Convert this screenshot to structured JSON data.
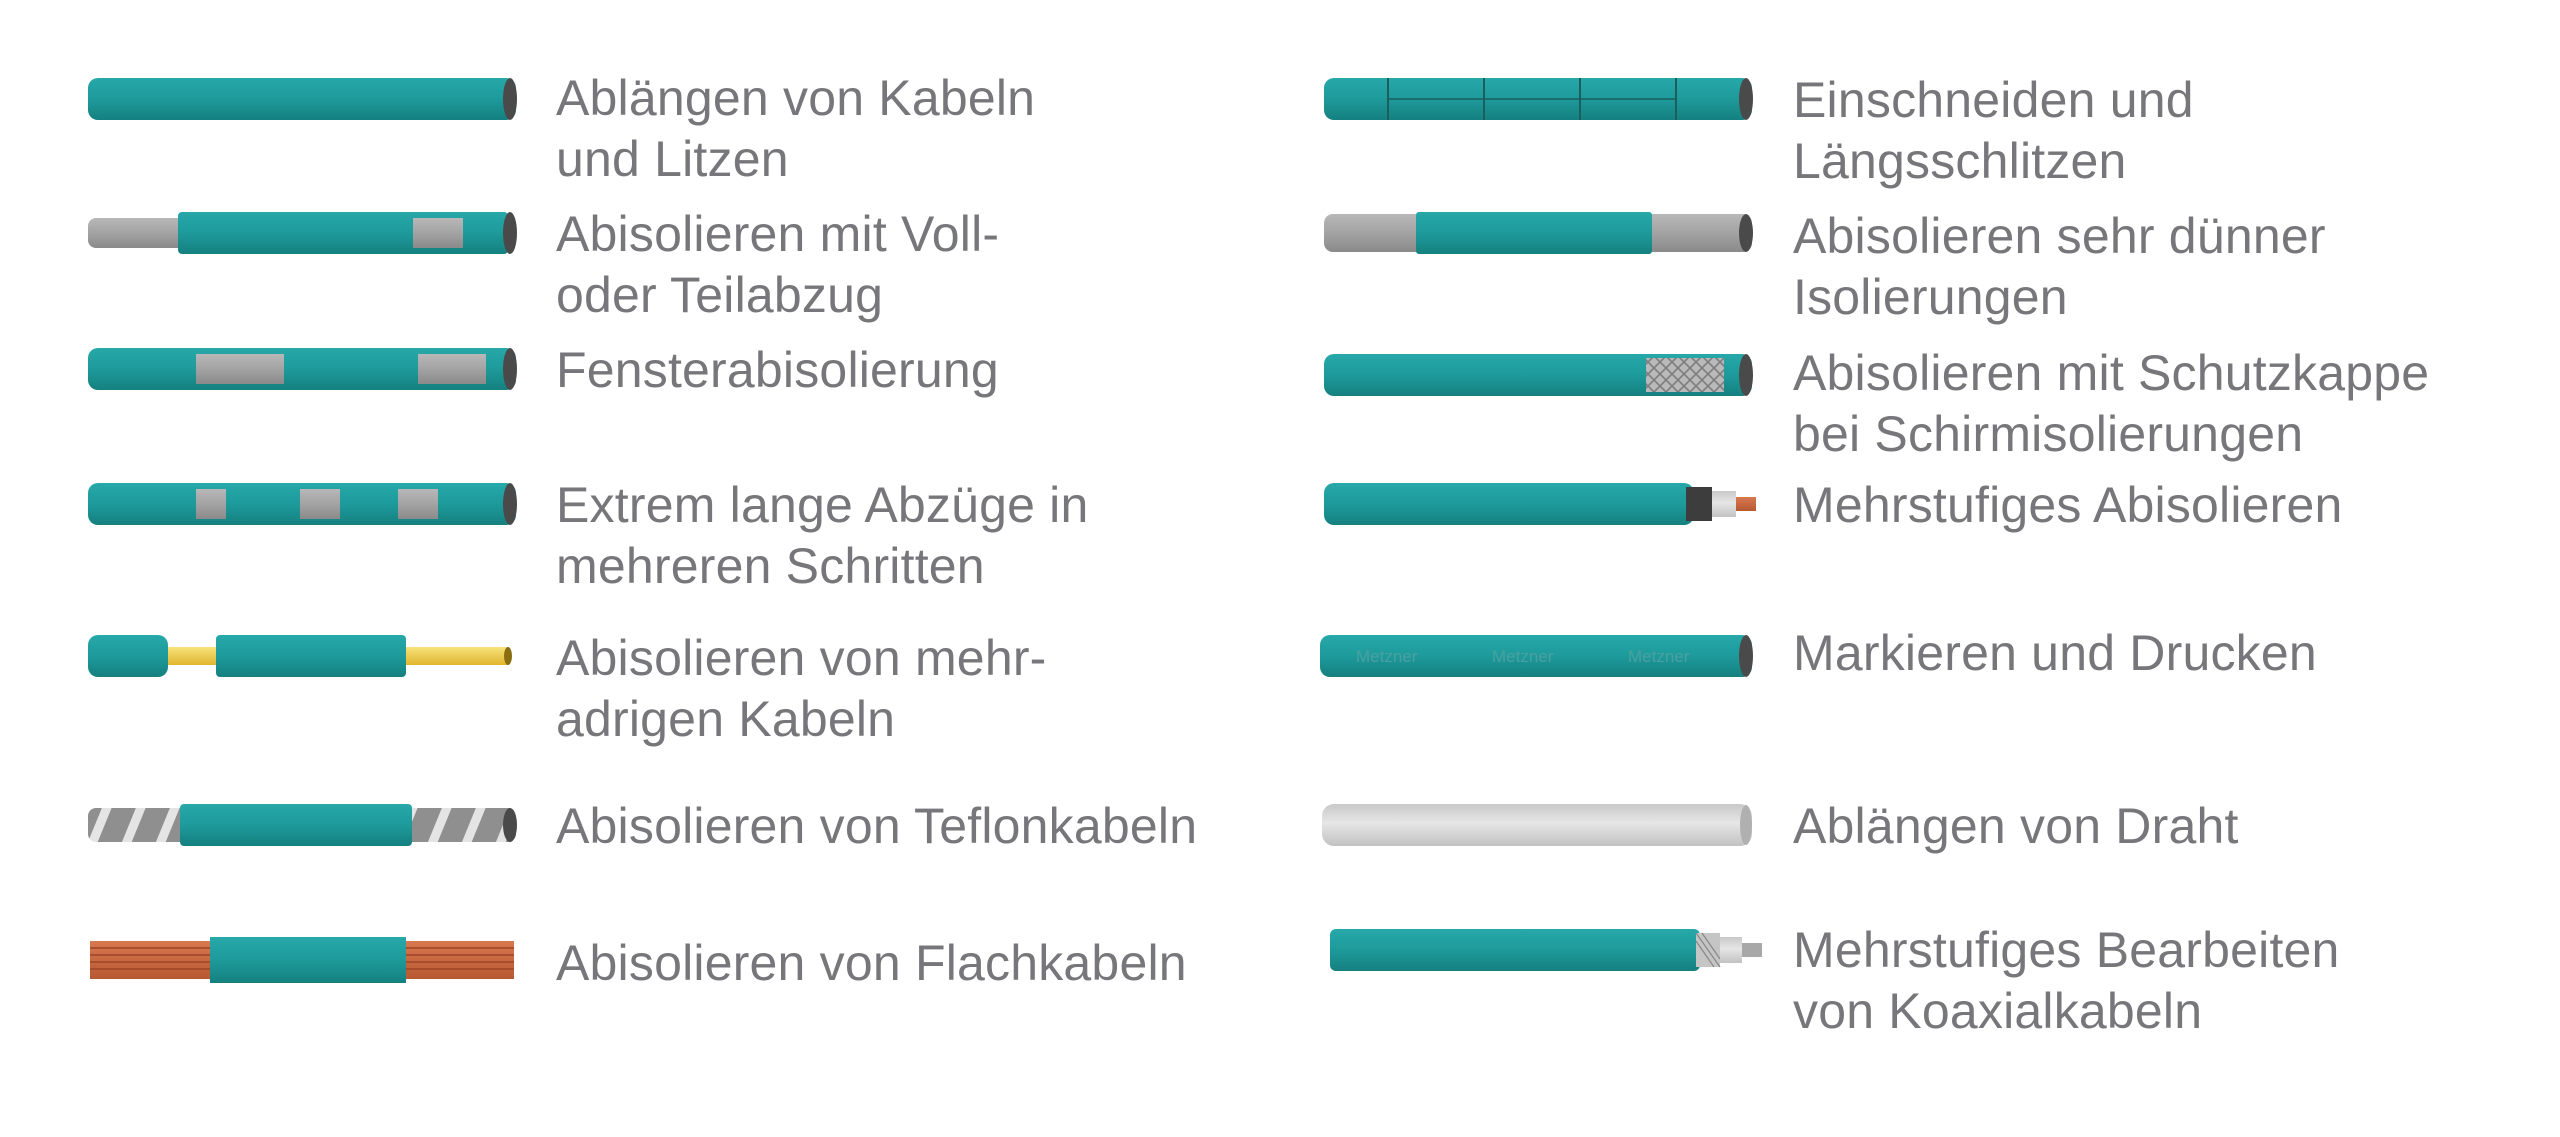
{
  "colors": {
    "teal": "#1e9a9b",
    "teal_dark": "#157b7c",
    "grey": "#9d9d9d",
    "copper": "#c8643e",
    "yellow": "#f2d24a",
    "label": "#77777b",
    "background": "#ffffff"
  },
  "left_column": [
    {
      "icon": "cut-to-length-cable-icon",
      "lines": [
        "Ablängen von Kabeln",
        "und Litzen"
      ]
    },
    {
      "icon": "full-partial-strip-icon",
      "lines": [
        "Abisolieren mit Voll-",
        "oder Teilabzug"
      ]
    },
    {
      "icon": "window-strip-icon",
      "lines": [
        "Fensterabisolierung"
      ]
    },
    {
      "icon": "long-strip-multistep-icon",
      "lines": [
        "Extrem lange Abzüge in",
        "mehreren Schritten"
      ]
    },
    {
      "icon": "multicore-cable-strip-icon",
      "lines": [
        "Abisolieren von mehr-",
        "adrigen Kabeln"
      ]
    },
    {
      "icon": "teflon-cable-strip-icon",
      "lines": [
        "Abisolieren von Teflonkabeln"
      ]
    },
    {
      "icon": "flat-cable-strip-icon",
      "lines": [
        "Abisolieren von Flachkabeln"
      ]
    }
  ],
  "right_column": [
    {
      "icon": "slit-cable-icon",
      "lines": [
        "Einschneiden und",
        "Längsschlitzen"
      ]
    },
    {
      "icon": "thin-insulation-strip-icon",
      "lines": [
        "Abisolieren sehr dünner",
        "Isolierungen"
      ]
    },
    {
      "icon": "shield-cap-strip-icon",
      "lines": [
        "Abisolieren mit Schutzkappe",
        "bei Schirmisolierungen"
      ]
    },
    {
      "icon": "multistep-strip-icon",
      "lines": [
        "Mehrstufiges Abisolieren"
      ]
    },
    {
      "icon": "marking-printing-icon",
      "lines": [
        "Markieren und Drucken"
      ],
      "print_text": [
        "Metzner",
        "Metzner",
        "Metzner"
      ]
    },
    {
      "icon": "cut-wire-icon",
      "lines": [
        "Ablängen von Draht"
      ]
    },
    {
      "icon": "coax-processing-icon",
      "lines": [
        "Mehrstufiges Bearbeiten",
        "von Koaxialkabeln"
      ]
    }
  ]
}
